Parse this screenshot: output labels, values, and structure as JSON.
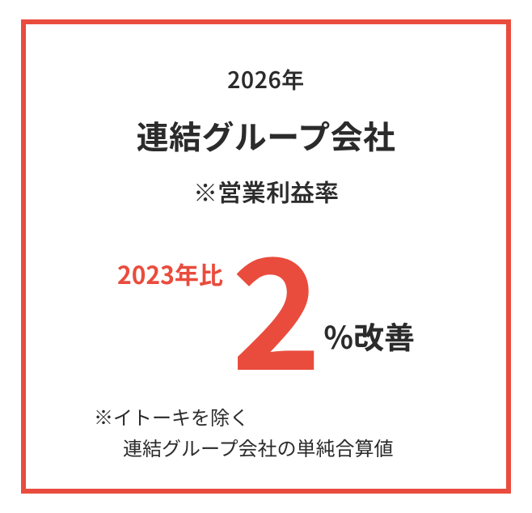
{
  "colors": {
    "accent": "#e94c3d",
    "text": "#2b2b2b",
    "background": "#ffffff",
    "border": "#e94c3d"
  },
  "typography": {
    "year_fontsize": 28,
    "title_fontsize": 40,
    "subtitle_fontsize": 30,
    "comparison_fontsize": 30,
    "big_number_fontsize": 190,
    "suffix_fontsize": 38,
    "footnote_fontsize": 24
  },
  "frame": {
    "border_width": 6
  },
  "content": {
    "year": "2026年",
    "title": "連結グループ会社",
    "subtitle": "※営業利益率",
    "comparison": "2023年比",
    "big_number": "2",
    "suffix": "%改善",
    "footnote_line1": "※イトーキを除く",
    "footnote_line2": "連結グループ会社の単純合算値"
  }
}
